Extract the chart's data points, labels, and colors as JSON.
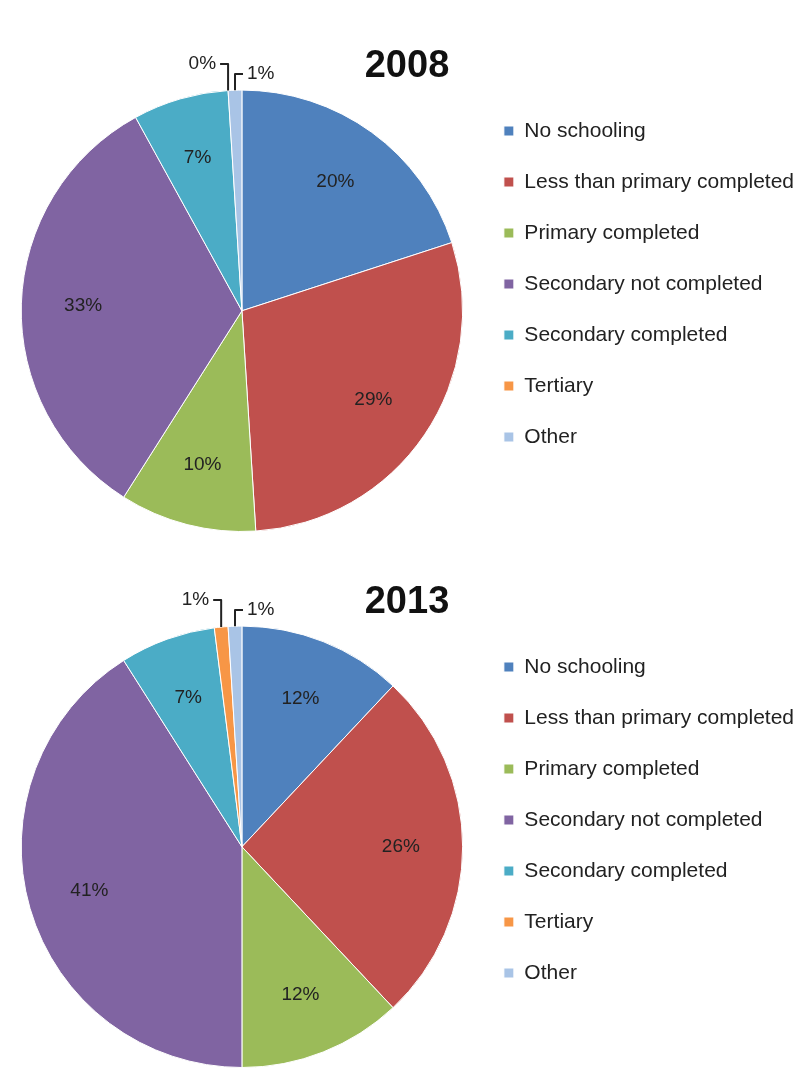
{
  "chart_data": [
    {
      "type": "pie",
      "title": "2008",
      "categories": [
        "No schooling",
        "Less than primary completed",
        "Primary completed",
        "Secondary not completed",
        "Secondary completed",
        "Tertiary",
        "Other"
      ],
      "values": [
        20,
        29,
        10,
        33,
        7,
        0,
        1
      ],
      "value_labels": [
        "20%",
        "29%",
        "10%",
        "33%",
        "7%",
        "0%",
        "1%"
      ],
      "colors": [
        "#4f81bd",
        "#c0504d",
        "#9bbb59",
        "#8064a2",
        "#4bacc6",
        "#f79646",
        "#a9c4e6"
      ],
      "legend": "right"
    },
    {
      "type": "pie",
      "title": "2013",
      "categories": [
        "No schooling",
        "Less than primary completed",
        "Primary completed",
        "Secondary not completed",
        "Secondary completed",
        "Tertiary",
        "Other"
      ],
      "values": [
        12,
        26,
        12,
        41,
        7,
        1,
        1
      ],
      "value_labels": [
        "12%",
        "26%",
        "12%",
        "41%",
        "7%",
        "1%",
        "1%"
      ],
      "colors": [
        "#4f81bd",
        "#c0504d",
        "#9bbb59",
        "#8064a2",
        "#4bacc6",
        "#f79646",
        "#a9c4e6"
      ],
      "legend": "right"
    }
  ]
}
